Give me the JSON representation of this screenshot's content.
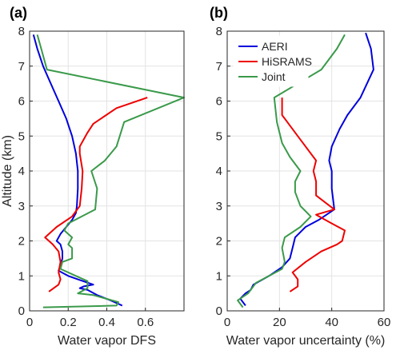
{
  "chart_data": [
    {
      "type": "line",
      "panel_label": "(a)",
      "xlabel": "Water vapor DFS",
      "ylabel": "Altitude (km)",
      "xlim": [
        0,
        0.8
      ],
      "ylim": [
        0,
        8
      ],
      "xticks": [
        "0",
        "0.2",
        "0.4",
        "0.6"
      ],
      "yticks": [
        "0",
        "1",
        "2",
        "3",
        "4",
        "5",
        "6",
        "7",
        "8"
      ],
      "grid": true,
      "series": [
        {
          "name": "AERI",
          "color": "#0000dd",
          "points": [
            [
              0.48,
              0.15
            ],
            [
              0.42,
              0.3
            ],
            [
              0.35,
              0.45
            ],
            [
              0.3,
              0.6
            ],
            [
              0.26,
              0.65
            ],
            [
              0.28,
              0.7
            ],
            [
              0.33,
              0.75
            ],
            [
              0.25,
              0.9
            ],
            [
              0.2,
              1.0
            ],
            [
              0.15,
              1.15
            ],
            [
              0.16,
              1.3
            ],
            [
              0.17,
              1.5
            ],
            [
              0.17,
              1.7
            ],
            [
              0.16,
              1.9
            ],
            [
              0.14,
              2.0
            ],
            [
              0.16,
              2.2
            ],
            [
              0.19,
              2.4
            ],
            [
              0.22,
              2.6
            ],
            [
              0.24,
              2.8
            ],
            [
              0.245,
              3.0
            ],
            [
              0.25,
              3.5
            ],
            [
              0.25,
              4.0
            ],
            [
              0.24,
              4.5
            ],
            [
              0.22,
              5.0
            ],
            [
              0.19,
              5.5
            ],
            [
              0.15,
              6.0
            ],
            [
              0.11,
              6.5
            ],
            [
              0.07,
              7.0
            ],
            [
              0.04,
              7.5
            ],
            [
              0.02,
              7.9
            ]
          ]
        },
        {
          "name": "HiSRAMS",
          "color": "#ee0000",
          "points": [
            [
              0.1,
              0.55
            ],
            [
              0.15,
              0.75
            ],
            [
              0.16,
              0.9
            ],
            [
              0.15,
              1.1
            ],
            [
              0.16,
              1.4
            ],
            [
              0.15,
              1.7
            ],
            [
              0.12,
              1.9
            ],
            [
              0.08,
              2.1
            ],
            [
              0.14,
              2.4
            ],
            [
              0.22,
              2.7
            ],
            [
              0.26,
              3.0
            ],
            [
              0.27,
              3.5
            ],
            [
              0.275,
              4.0
            ],
            [
              0.26,
              4.5
            ],
            [
              0.26,
              4.7
            ],
            [
              0.3,
              5.1
            ],
            [
              0.33,
              5.35
            ],
            [
              0.45,
              5.8
            ],
            [
              0.61,
              6.1
            ]
          ]
        },
        {
          "name": "Joint",
          "color": "#3a9a4a",
          "points": [
            [
              0.07,
              0.1
            ],
            [
              0.45,
              0.15
            ],
            [
              0.46,
              0.25
            ],
            [
              0.33,
              0.45
            ],
            [
              0.25,
              0.5
            ],
            [
              0.3,
              0.65
            ],
            [
              0.3,
              0.85
            ],
            [
              0.24,
              1.0
            ],
            [
              0.16,
              1.2
            ],
            [
              0.17,
              1.4
            ],
            [
              0.22,
              1.5
            ],
            [
              0.22,
              1.8
            ],
            [
              0.2,
              1.9
            ],
            [
              0.22,
              2.1
            ],
            [
              0.18,
              2.3
            ],
            [
              0.2,
              2.5
            ],
            [
              0.27,
              2.7
            ],
            [
              0.34,
              2.9
            ],
            [
              0.35,
              3.5
            ],
            [
              0.32,
              4.0
            ],
            [
              0.39,
              4.3
            ],
            [
              0.45,
              4.7
            ],
            [
              0.49,
              5.4
            ],
            [
              0.8,
              6.1
            ],
            [
              0.09,
              6.9
            ],
            [
              0.06,
              7.5
            ],
            [
              0.04,
              7.9
            ]
          ]
        }
      ]
    },
    {
      "type": "line",
      "panel_label": "(b)",
      "xlabel": "Water vapor uncertainty (%)",
      "ylabel": "",
      "xlim": [
        0,
        60
      ],
      "ylim": [
        0,
        8
      ],
      "xticks": [
        "0",
        "20",
        "40",
        "60"
      ],
      "yticks": [
        "0",
        "1",
        "2",
        "3",
        "4",
        "5",
        "6",
        "7",
        "8"
      ],
      "grid": true,
      "legend": "top-left",
      "legend_entries": [
        "AERI",
        "HiSRAMS",
        "Joint"
      ],
      "series": [
        {
          "name": "AERI",
          "color": "#0000dd",
          "points": [
            [
              7,
              0.15
            ],
            [
              5,
              0.35
            ],
            [
              7,
              0.5
            ],
            [
              9,
              0.6
            ],
            [
              10,
              0.75
            ],
            [
              16,
              1.0
            ],
            [
              21,
              1.25
            ],
            [
              24,
              1.5
            ],
            [
              25,
              1.8
            ],
            [
              26,
              2.1
            ],
            [
              30,
              2.4
            ],
            [
              35,
              2.6
            ],
            [
              41,
              2.9
            ],
            [
              40,
              3.5
            ],
            [
              40,
              4.0
            ],
            [
              39,
              4.3
            ],
            [
              40,
              4.7
            ],
            [
              43,
              5.2
            ],
            [
              46,
              5.6
            ],
            [
              51,
              6.1
            ],
            [
              56,
              6.9
            ],
            [
              55,
              7.5
            ],
            [
              53,
              7.95
            ]
          ]
        },
        {
          "name": "HiSRAMS",
          "color": "#ee0000",
          "points": [
            [
              24,
              0.55
            ],
            [
              27,
              0.7
            ],
            [
              27,
              0.9
            ],
            [
              25,
              1.1
            ],
            [
              30,
              1.4
            ],
            [
              36,
              1.7
            ],
            [
              42,
              1.9
            ],
            [
              44,
              2.0
            ],
            [
              45,
              2.3
            ],
            [
              40,
              2.5
            ],
            [
              34,
              2.75
            ],
            [
              41,
              2.9
            ],
            [
              34,
              3.3
            ],
            [
              34,
              3.7
            ],
            [
              33,
              4.0
            ],
            [
              34,
              4.3
            ],
            [
              31,
              4.6
            ],
            [
              27,
              5.0
            ],
            [
              23,
              5.4
            ],
            [
              21,
              5.6
            ],
            [
              21,
              6.1
            ]
          ]
        },
        {
          "name": "Joint",
          "color": "#3a9a4a",
          "points": [
            [
              6,
              0.1
            ],
            [
              4,
              0.3
            ],
            [
              8,
              0.5
            ],
            [
              11,
              0.8
            ],
            [
              16,
              1.0
            ],
            [
              21,
              1.2
            ],
            [
              22,
              1.4
            ],
            [
              21,
              1.8
            ],
            [
              22,
              2.1
            ],
            [
              28,
              2.4
            ],
            [
              32,
              2.7
            ],
            [
              28,
              3.0
            ],
            [
              26,
              3.4
            ],
            [
              26,
              3.7
            ],
            [
              28,
              4.0
            ],
            [
              24,
              4.4
            ],
            [
              21,
              4.8
            ],
            [
              19,
              5.4
            ],
            [
              18,
              6.1
            ],
            [
              36,
              6.9
            ],
            [
              42,
              7.5
            ],
            [
              45,
              7.9
            ]
          ]
        }
      ]
    }
  ]
}
